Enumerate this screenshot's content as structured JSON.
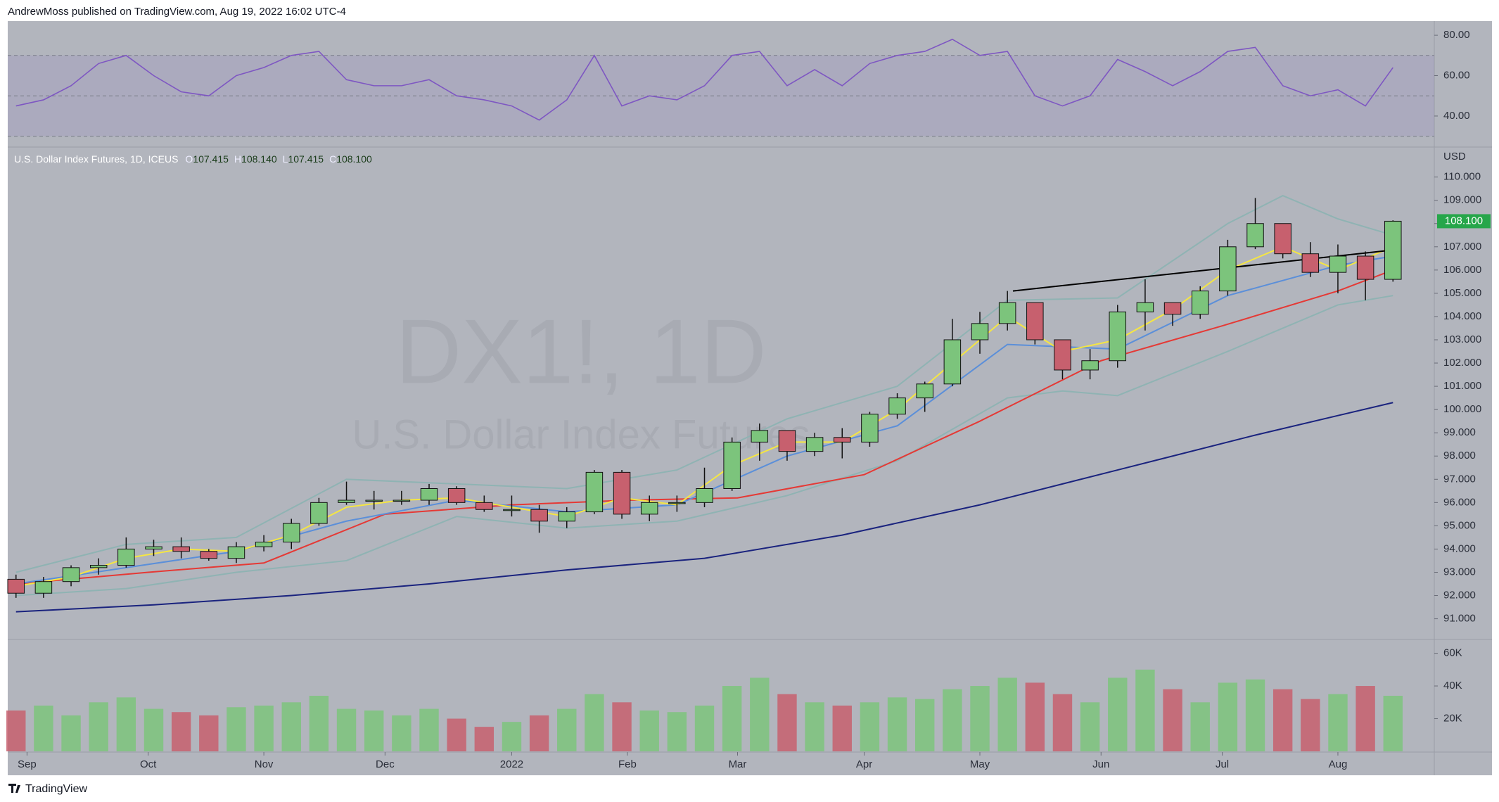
{
  "header": "AndrewMoss published on TradingView.com, Aug 19, 2022 16:02 UTC-4",
  "footer": "TradingView",
  "chart_data": {
    "type": "candlestick",
    "symbol": "U.S. Dollar Index Futures, 1D, ICEUS",
    "watermark": "DX1!, 1D",
    "watermark_subtitle": "U.S. Dollar Index Futures",
    "currency": "USD",
    "ohlc": [
      {
        "name": "O",
        "value": 107.415
      },
      {
        "name": "H",
        "value": 108.14,
        "label": "108.140"
      },
      {
        "name": "L",
        "value": 107.415
      },
      {
        "name": "C",
        "value": 108.1,
        "label": "108.100"
      }
    ],
    "last_price": {
      "value": 108.1,
      "label": "108.100",
      "color": "#26a64a"
    },
    "up_color": "#7cc47c",
    "down_color": "#c7606e",
    "xlim": [
      -0.3,
      51.5
    ],
    "xticks": [
      {
        "value": 0.4,
        "label": "Sep"
      },
      {
        "value": 4.8,
        "label": "Oct"
      },
      {
        "value": 9,
        "label": "Nov"
      },
      {
        "value": 13.4,
        "label": "Dec"
      },
      {
        "value": 18,
        "label": "2022"
      },
      {
        "value": 22.2,
        "label": "Feb"
      },
      {
        "value": 26.2,
        "label": "Mar"
      },
      {
        "value": 30.8,
        "label": "Apr"
      },
      {
        "value": 35,
        "label": "May"
      },
      {
        "value": 39.4,
        "label": "Jun"
      },
      {
        "value": 43.8,
        "label": "Jul"
      },
      {
        "value": 48,
        "label": "Aug"
      }
    ],
    "ylim": [
      90.14,
      111.23
    ],
    "yticks": [
      {
        "value": 91,
        "label": "91.000"
      },
      {
        "value": 92,
        "label": "92.000"
      },
      {
        "value": 93,
        "label": "93.000"
      },
      {
        "value": 94,
        "label": "94.000"
      },
      {
        "value": 95,
        "label": "95.000"
      },
      {
        "value": 96,
        "label": "96.000"
      },
      {
        "value": 97,
        "label": "97.000"
      },
      {
        "value": 98,
        "label": "98.000"
      },
      {
        "value": 99,
        "label": "99.000"
      },
      {
        "value": 100,
        "label": "100.000"
      },
      {
        "value": 101,
        "label": "101.000"
      },
      {
        "value": 102,
        "label": "102.000"
      },
      {
        "value": 103,
        "label": "103.000"
      },
      {
        "value": 104,
        "label": "104.000"
      },
      {
        "value": 105,
        "label": "105.000"
      },
      {
        "value": 106,
        "label": "106.000"
      },
      {
        "value": 107,
        "label": "107.000"
      },
      {
        "value": 108,
        "label": "108.000"
      },
      {
        "value": 109,
        "label": "109.000"
      },
      {
        "value": 110,
        "label": "110.000"
      }
    ],
    "candles": {
      "open": [
        92.7,
        92.1,
        92.6,
        93.2,
        93.3,
        94.0,
        94.1,
        93.9,
        93.6,
        94.1,
        94.3,
        95.1,
        96.0,
        96.1,
        96.1,
        96.1,
        96.6,
        96.0,
        95.7,
        95.7,
        95.2,
        95.6,
        97.3,
        95.5,
        96.0,
        96.0,
        96.6,
        98.6,
        99.1,
        98.2,
        98.8,
        98.6,
        99.8,
        100.5,
        101.1,
        103.0,
        103.7,
        104.6,
        103.0,
        101.7,
        102.1,
        104.2,
        104.6,
        104.1,
        105.1,
        107.0,
        108.0,
        106.7,
        105.9,
        106.6,
        105.6
      ],
      "high": [
        92.9,
        92.8,
        93.3,
        93.6,
        94.5,
        94.4,
        94.5,
        94.0,
        94.3,
        94.6,
        95.3,
        96.2,
        96.9,
        96.5,
        96.5,
        96.8,
        96.7,
        96.3,
        96.3,
        95.9,
        95.8,
        97.4,
        97.4,
        96.3,
        96.3,
        97.5,
        98.8,
        99.4,
        99.1,
        99.0,
        99.2,
        99.9,
        100.7,
        101.2,
        103.9,
        104.2,
        105.1,
        104.6,
        103.0,
        102.6,
        104.5,
        105.6,
        104.6,
        105.3,
        107.3,
        109.1,
        108.0,
        107.2,
        107.1,
        106.8,
        108.14
      ],
      "low": [
        91.9,
        91.9,
        92.4,
        92.9,
        93.2,
        93.7,
        93.6,
        93.5,
        93.4,
        93.9,
        94.0,
        95.0,
        95.9,
        95.7,
        95.9,
        95.9,
        95.9,
        95.6,
        95.4,
        94.7,
        94.9,
        95.5,
        95.3,
        95.2,
        95.6,
        95.8,
        96.5,
        97.8,
        97.8,
        98.0,
        97.9,
        98.4,
        99.6,
        99.9,
        101.0,
        102.4,
        103.4,
        102.8,
        101.3,
        101.3,
        101.8,
        103.4,
        103.6,
        103.9,
        104.9,
        106.9,
        106.5,
        105.7,
        105.0,
        104.7,
        105.5
      ],
      "close": [
        92.1,
        92.6,
        93.2,
        93.3,
        94.0,
        94.1,
        93.9,
        93.6,
        94.1,
        94.3,
        95.1,
        96.0,
        96.1,
        96.1,
        96.1,
        96.6,
        96.0,
        95.7,
        95.7,
        95.2,
        95.6,
        97.3,
        95.5,
        96.0,
        96.0,
        96.6,
        98.6,
        99.1,
        98.2,
        98.8,
        98.6,
        99.8,
        100.5,
        101.1,
        103.0,
        103.7,
        104.6,
        103.0,
        101.7,
        102.1,
        104.2,
        104.6,
        104.1,
        105.1,
        107.0,
        108.0,
        106.7,
        105.9,
        106.6,
        105.6,
        108.1
      ]
    },
    "overlays": [
      {
        "color": "#8fb3b3",
        "x": [
          0,
          4,
          8,
          12,
          16,
          20,
          24,
          28,
          32,
          36,
          40,
          44,
          46,
          48,
          50
        ],
        "values": [
          93.0,
          94.2,
          94.5,
          97.0,
          96.8,
          96.6,
          97.4,
          99.6,
          101.0,
          104.7,
          104.8,
          108.0,
          109.2,
          108.2,
          107.5
        ]
      },
      {
        "color": "#8fb3b3",
        "x": [
          0,
          4,
          8,
          12,
          16,
          20,
          24,
          28,
          32,
          36,
          38,
          40,
          44,
          48,
          50
        ],
        "values": [
          92.0,
          92.3,
          93.0,
          93.5,
          95.4,
          94.9,
          95.2,
          96.3,
          97.8,
          100.5,
          100.8,
          100.6,
          102.5,
          104.5,
          104.9
        ]
      },
      {
        "color": "#1a237e",
        "x": [
          0,
          5,
          10,
          15,
          20,
          25,
          30,
          35,
          40,
          45,
          50
        ],
        "values": [
          91.3,
          91.6,
          92.0,
          92.5,
          93.1,
          93.6,
          94.6,
          95.9,
          97.4,
          98.9,
          100.3
        ]
      },
      {
        "color": "#e53935",
        "x": [
          0,
          4.8,
          9,
          13.4,
          18,
          22.2,
          26.2,
          30.8,
          35,
          39.4,
          43.8,
          48,
          50
        ],
        "values": [
          92.5,
          93.0,
          93.4,
          95.5,
          95.9,
          96.1,
          96.2,
          97.2,
          99.5,
          102.1,
          103.6,
          105.1,
          106.0
        ]
      },
      {
        "color": "#5b8fd9",
        "x": [
          0,
          4,
          8,
          12,
          16,
          20,
          24,
          28,
          32,
          36,
          40,
          44,
          48,
          50
        ],
        "values": [
          92.5,
          93.2,
          93.9,
          95.2,
          96.1,
          95.6,
          95.9,
          98.0,
          99.3,
          102.8,
          102.6,
          104.9,
          106.2,
          106.6
        ]
      },
      {
        "color": "#f5e642",
        "x": [
          0,
          2,
          4,
          6,
          8,
          10,
          12,
          14,
          16,
          18,
          20,
          22,
          24,
          26,
          28,
          30,
          32,
          34,
          36,
          38,
          40,
          42,
          44,
          46,
          48,
          50
        ],
        "values": [
          92.4,
          92.8,
          93.6,
          94.0,
          93.9,
          94.6,
          95.8,
          96.1,
          96.2,
          95.8,
          95.4,
          96.2,
          95.9,
          97.6,
          98.6,
          98.6,
          100.0,
          102.0,
          104.0,
          102.5,
          103.0,
          104.3,
          106.0,
          107.0,
          106.0,
          107.0
        ]
      },
      {
        "color": "#000000",
        "x": [
          36.2,
          50.3
        ],
        "values": [
          105.1,
          106.9
        ]
      }
    ],
    "rsi": {
      "color": "#7e57c2",
      "ylim": [
        25,
        87
      ],
      "yticks": [
        {
          "value": 40,
          "label": "40.00"
        },
        {
          "value": 60,
          "label": "60.00"
        },
        {
          "value": 80,
          "label": "80.00"
        }
      ],
      "bands": [
        30,
        50,
        70
      ],
      "values": [
        45,
        48,
        55,
        66,
        70,
        60,
        52,
        50,
        60,
        64,
        70,
        72,
        58,
        55,
        55,
        58,
        50,
        48,
        45,
        38,
        48,
        70,
        45,
        50,
        48,
        55,
        70,
        72,
        55,
        63,
        55,
        66,
        70,
        72,
        78,
        70,
        72,
        50,
        45,
        50,
        68,
        62,
        55,
        62,
        72,
        74,
        55,
        50,
        53,
        45,
        64
      ]
    },
    "volume": {
      "ylim": [
        0,
        68000
      ],
      "yticks": [
        {
          "value": 20000,
          "label": "20K"
        },
        {
          "value": 40000,
          "label": "40K"
        },
        {
          "value": 60000,
          "label": "60K"
        }
      ],
      "values": [
        25000,
        28000,
        22000,
        30000,
        33000,
        26000,
        24000,
        22000,
        27000,
        28000,
        30000,
        34000,
        26000,
        25000,
        22000,
        26000,
        20000,
        15000,
        18000,
        22000,
        26000,
        35000,
        30000,
        25000,
        24000,
        28000,
        40000,
        45000,
        35000,
        30000,
        28000,
        30000,
        33000,
        32000,
        38000,
        40000,
        45000,
        42000,
        35000,
        30000,
        45000,
        50000,
        38000,
        30000,
        42000,
        44000,
        38000,
        32000,
        35000,
        40000,
        34000
      ]
    }
  }
}
